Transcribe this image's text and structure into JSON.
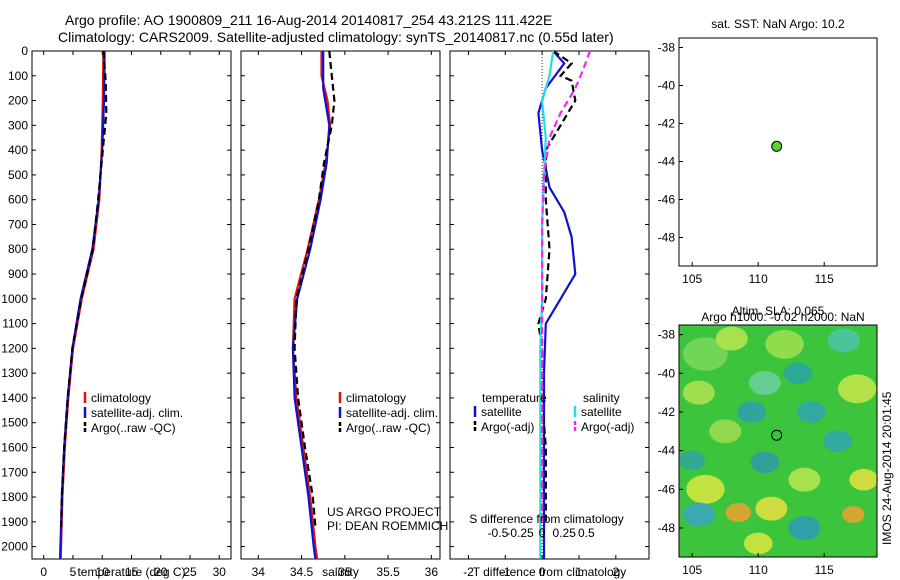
{
  "header": {
    "line1": "Argo profile: AO 1900809_211 16-Aug-2014 20140817_254 43.212S 111.422E",
    "line2": "Climatology: CARS2009. Satellite-adjusted climatology: synTS_20140817.nc (0.55d later)"
  },
  "stamp": "IMOS 24-Aug-2014 20:01:45",
  "colors": {
    "climatology": "#e01010",
    "satellite": "#1010d0",
    "argo": "#000000",
    "sal_sat": "#20e0e0",
    "sal_argo": "#ff20ff"
  },
  "chart_data": [
    {
      "id": "temperature",
      "type": "line",
      "xlabel": "temperature (deg C)",
      "ylabel": "",
      "xlim": [
        -2,
        32
      ],
      "ylim": [
        2050,
        0
      ],
      "xticks": [
        0,
        5,
        10,
        15,
        20,
        25,
        30
      ],
      "yticks": [
        0,
        100,
        200,
        300,
        400,
        500,
        600,
        700,
        800,
        900,
        1000,
        1100,
        1200,
        1300,
        1400,
        1500,
        1600,
        1700,
        1800,
        1900,
        2000
      ],
      "legend": [
        "climatology",
        "satellite-adj. clim.",
        "Argo(..raw -QC)"
      ],
      "series": [
        {
          "name": "climatology",
          "style": "solid",
          "color": "#e01010",
          "points": [
            [
              10.2,
              0
            ],
            [
              10.1,
              200
            ],
            [
              9.9,
              400
            ],
            [
              9.5,
              600
            ],
            [
              8.5,
              800
            ],
            [
              6.5,
              1000
            ],
            [
              5.0,
              1200
            ],
            [
              4.2,
              1400
            ],
            [
              3.6,
              1600
            ],
            [
              3.2,
              1800
            ],
            [
              2.9,
              2050
            ]
          ]
        },
        {
          "name": "satellite-adj. clim.",
          "style": "solid",
          "color": "#1010d0",
          "points": [
            [
              10.4,
              0
            ],
            [
              10.3,
              200
            ],
            [
              10.0,
              400
            ],
            [
              9.4,
              600
            ],
            [
              8.3,
              800
            ],
            [
              6.3,
              1000
            ],
            [
              4.9,
              1200
            ],
            [
              4.1,
              1400
            ],
            [
              3.5,
              1600
            ],
            [
              3.1,
              1800
            ],
            [
              2.8,
              2050
            ]
          ]
        },
        {
          "name": "Argo(..raw -QC)",
          "style": "dash",
          "color": "#000000",
          "points": [
            [
              10.2,
              0
            ],
            [
              10.6,
              120
            ],
            [
              10.7,
              250
            ],
            [
              10.1,
              400
            ],
            [
              9.3,
              600
            ],
            [
              8.4,
              800
            ],
            [
              6.4,
              1000
            ],
            [
              4.9,
              1200
            ],
            [
              4.1,
              1400
            ],
            [
              3.5,
              1600
            ],
            [
              3.1,
              1800
            ],
            [
              3.0,
              1920
            ]
          ]
        }
      ]
    },
    {
      "id": "salinity",
      "type": "line",
      "xlabel": "salinity",
      "ylabel": "",
      "xlim": [
        33.8,
        36.1
      ],
      "ylim": [
        2050,
        0
      ],
      "xticks": [
        34,
        34.5,
        35,
        35.5,
        36
      ],
      "legend": [
        "climatology",
        "satellite-adj. clim.",
        "Argo(..raw -QC)"
      ],
      "annotation": [
        "US ARGO PROJECT",
        "PI: DEAN ROEMMICH"
      ],
      "series": [
        {
          "name": "climatology",
          "style": "solid",
          "color": "#e01010",
          "points": [
            [
              34.73,
              0
            ],
            [
              34.73,
              100
            ],
            [
              34.8,
              200
            ],
            [
              34.83,
              300
            ],
            [
              34.78,
              450
            ],
            [
              34.7,
              600
            ],
            [
              34.57,
              800
            ],
            [
              34.42,
              1000
            ],
            [
              34.4,
              1200
            ],
            [
              34.44,
              1400
            ],
            [
              34.52,
              1600
            ],
            [
              34.6,
              1800
            ],
            [
              34.66,
              2000
            ],
            [
              34.68,
              2050
            ]
          ]
        },
        {
          "name": "satellite-adj. clim.",
          "style": "solid",
          "color": "#1010d0",
          "points": [
            [
              34.75,
              0
            ],
            [
              34.75,
              150
            ],
            [
              34.82,
              300
            ],
            [
              34.79,
              450
            ],
            [
              34.72,
              600
            ],
            [
              34.6,
              800
            ],
            [
              34.45,
              1000
            ],
            [
              34.4,
              1200
            ],
            [
              34.42,
              1400
            ],
            [
              34.5,
              1600
            ],
            [
              34.58,
              1800
            ],
            [
              34.64,
              2000
            ],
            [
              34.66,
              2050
            ]
          ]
        },
        {
          "name": "Argo(..raw -QC)",
          "style": "dash",
          "color": "#000000",
          "points": [
            [
              34.82,
              0
            ],
            [
              34.85,
              100
            ],
            [
              34.88,
              200
            ],
            [
              34.85,
              300
            ],
            [
              34.76,
              450
            ],
            [
              34.7,
              600
            ],
            [
              34.58,
              800
            ],
            [
              34.44,
              1000
            ],
            [
              34.42,
              1200
            ],
            [
              34.46,
              1400
            ],
            [
              34.54,
              1600
            ],
            [
              34.63,
              1800
            ],
            [
              34.66,
              1920
            ]
          ]
        }
      ]
    },
    {
      "id": "difference",
      "type": "line",
      "xlabel": "T difference from climatology",
      "xlabel2": "S difference from climatology",
      "xlim": [
        -2.5,
        2.9
      ],
      "ylim": [
        2050,
        0
      ],
      "xticks": [
        -2,
        -1,
        0,
        1,
        2
      ],
      "xticks_salinity": [
        -0.5,
        -0.25,
        0,
        0.25,
        0.5
      ],
      "legend_headers": [
        "temperature",
        "salinity"
      ],
      "legend": [
        "satellite",
        "Argo(-adj)",
        "satellite",
        "Argo(-adj)"
      ],
      "series": [
        {
          "name": "temperature satellite",
          "style": "solid",
          "color": "#1010d0",
          "points": [
            [
              0.3,
              0
            ],
            [
              0.6,
              50
            ],
            [
              0.1,
              150
            ],
            [
              -0.1,
              250
            ],
            [
              0.0,
              400
            ],
            [
              0.2,
              550
            ],
            [
              0.6,
              650
            ],
            [
              0.8,
              750
            ],
            [
              0.9,
              900
            ],
            [
              0.5,
              1000
            ],
            [
              0.1,
              1100
            ],
            [
              0.05,
              1300
            ],
            [
              0.05,
              1600
            ],
            [
              0.05,
              2050
            ]
          ]
        },
        {
          "name": "temperature Argo(-adj)",
          "style": "dash",
          "color": "#000000",
          "points": [
            [
              0.3,
              0
            ],
            [
              0.8,
              50
            ],
            [
              0.5,
              100
            ],
            [
              0.8,
              120
            ],
            [
              0.9,
              200
            ],
            [
              0.5,
              300
            ],
            [
              0.1,
              400
            ],
            [
              0.1,
              600
            ],
            [
              0.2,
              800
            ],
            [
              0.1,
              1000
            ],
            [
              -0.1,
              1100
            ],
            [
              0.0,
              1200
            ],
            [
              0.0,
              1400
            ],
            [
              0.1,
              1600
            ],
            [
              0.1,
              1900
            ]
          ]
        },
        {
          "name": "salinity satellite",
          "style": "solid",
          "color": "#20e0e0",
          "points": [
            [
              0.3,
              0
            ],
            [
              0.2,
              100
            ],
            [
              0.0,
              200
            ],
            [
              0.1,
              350
            ],
            [
              0.05,
              500
            ],
            [
              0.0,
              700
            ],
            [
              0.0,
              1000
            ],
            [
              -0.05,
              1200
            ],
            [
              -0.05,
              1600
            ],
            [
              -0.05,
              2050
            ]
          ]
        },
        {
          "name": "salinity Argo(-adj)",
          "style": "dash",
          "color": "#ff20ff",
          "points": [
            [
              1.3,
              0
            ],
            [
              1.1,
              80
            ],
            [
              0.9,
              150
            ],
            [
              0.5,
              250
            ],
            [
              0.2,
              350
            ],
            [
              0.05,
              500
            ],
            [
              0.0,
              700
            ],
            [
              0.0,
              1000
            ],
            [
              0.0,
              1300
            ],
            [
              0.0,
              1600
            ],
            [
              0.0,
              1900
            ]
          ]
        }
      ]
    },
    {
      "id": "sst_map",
      "type": "scatter",
      "title": "sat. SST: NaN Argo: 10.2",
      "xlim": [
        104,
        119
      ],
      "ylim": [
        -49.5,
        -37.5
      ],
      "xticks": [
        105,
        110,
        115
      ],
      "yticks": [
        -38,
        -40,
        -42,
        -44,
        -46,
        -48
      ],
      "point": [
        111.4,
        -43.2
      ]
    },
    {
      "id": "sla_map",
      "type": "heatmap",
      "title": "Altim. SLA: 0.065",
      "subtitle": "Argo h1000: -0.02 h2000: NaN",
      "xlim": [
        104,
        119
      ],
      "ylim": [
        -49.5,
        -37.5
      ],
      "xticks": [
        105,
        110,
        115
      ],
      "yticks": [
        -38,
        -40,
        -42,
        -44,
        -46,
        -48
      ],
      "point": [
        111.4,
        -43.2
      ]
    }
  ]
}
